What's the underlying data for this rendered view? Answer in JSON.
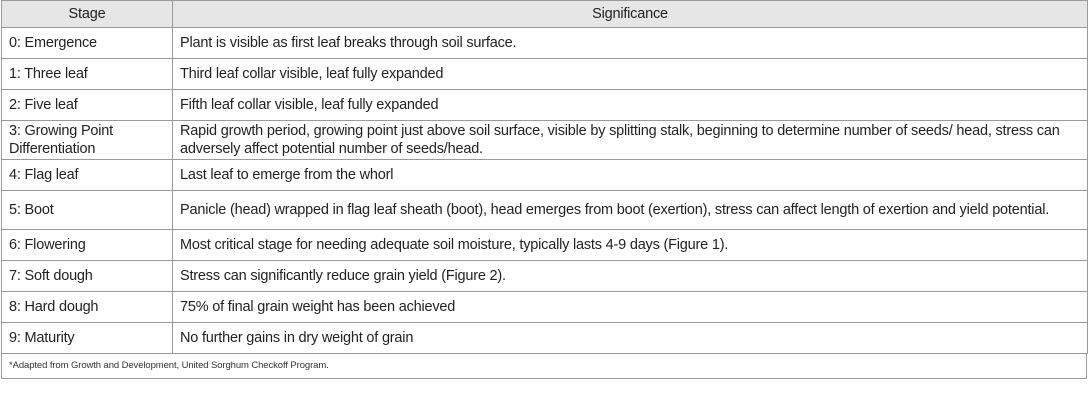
{
  "table": {
    "headers": [
      "Stage",
      "Significance"
    ],
    "rows": [
      {
        "stage": "0: Emergence",
        "significance": "Plant is visible as first leaf breaks through soil surface."
      },
      {
        "stage": "1: Three leaf",
        "significance": "Third leaf collar visible, leaf fully expanded"
      },
      {
        "stage": "2: Five leaf",
        "significance": "Fifth leaf collar visible, leaf fully expanded"
      },
      {
        "stage": "3: Growing Point Differentiation",
        "significance": "Rapid growth period, growing point just above soil surface, visible by splitting stalk, beginning to determine number of seeds/ head, stress can adversely affect potential number of seeds/head."
      },
      {
        "stage": "4: Flag leaf",
        "significance": "Last leaf to emerge from the whorl"
      },
      {
        "stage": "5: Boot",
        "significance": "Panicle (head) wrapped in flag leaf sheath (boot), head emerges from boot (exertion), stress can affect length of exertion and yield potential."
      },
      {
        "stage": "6: Flowering",
        "significance": "Most critical stage for needing adequate soil moisture, typically lasts 4-9 days (Figure 1)."
      },
      {
        "stage": "7: Soft dough",
        "significance": "Stress can significantly reduce grain yield (Figure 2)."
      },
      {
        "stage": "8: Hard dough",
        "significance": "75% of final grain weight has been achieved"
      },
      {
        "stage": "9: Maturity",
        "significance": "No further gains in dry weight of grain"
      }
    ],
    "footnote": "*Adapted from Growth and Development, United Sorghum Checkoff Program."
  }
}
